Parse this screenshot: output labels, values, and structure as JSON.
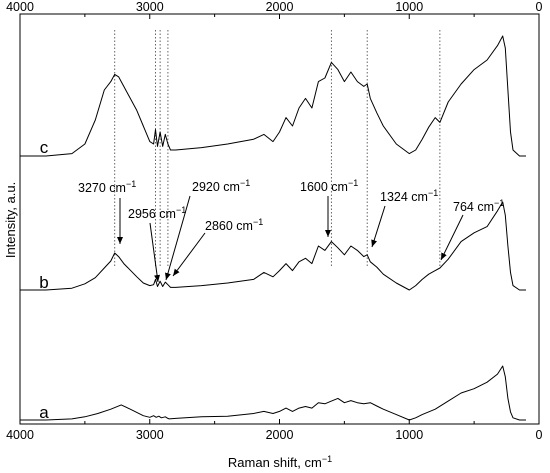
{
  "chart_data": {
    "type": "line",
    "title": "",
    "xlabel": "Raman shift, cm",
    "xlabel_superscript": "−1",
    "ylabel": "Intensity, a.u.",
    "xlim": [
      4000,
      0
    ],
    "x_reversed": true,
    "x_ticks": [
      4000,
      3000,
      2000,
      1000,
      0
    ],
    "x_tick_labels": [
      "4000",
      "3000",
      "2000",
      "1000",
      "0"
    ],
    "y_ticks_shown": false,
    "grid": false,
    "legend": "none",
    "series": [
      {
        "name": "a",
        "x": [
          4000,
          3800,
          3600,
          3500,
          3400,
          3300,
          3220,
          3150,
          3050,
          3000,
          2970,
          2950,
          2930,
          2910,
          2880,
          2860,
          2850,
          2800,
          2600,
          2400,
          2200,
          2120,
          2050,
          2000,
          1950,
          1900,
          1850,
          1800,
          1750,
          1700,
          1650,
          1600,
          1550,
          1500,
          1450,
          1400,
          1350,
          1300,
          1250,
          1200,
          1100,
          1000,
          950,
          900,
          800,
          700,
          600,
          500,
          400,
          320,
          280,
          260,
          240,
          220,
          200,
          150,
          100
        ],
        "y": [
          0.0,
          0.0,
          0.02,
          0.06,
          0.12,
          0.2,
          0.28,
          0.2,
          0.08,
          0.05,
          0.08,
          0.05,
          0.07,
          0.04,
          0.06,
          0.03,
          0.02,
          0.03,
          0.06,
          0.07,
          0.12,
          0.16,
          0.12,
          0.16,
          0.22,
          0.16,
          0.22,
          0.25,
          0.22,
          0.32,
          0.3,
          0.35,
          0.4,
          0.32,
          0.36,
          0.32,
          0.3,
          0.32,
          0.26,
          0.2,
          0.1,
          0.0,
          0.04,
          0.1,
          0.2,
          0.35,
          0.5,
          0.58,
          0.7,
          0.85,
          1.0,
          0.8,
          0.4,
          0.15,
          0.04,
          0.0,
          0.0
        ]
      },
      {
        "name": "b",
        "x": [
          4000,
          3800,
          3600,
          3500,
          3420,
          3350,
          3300,
          3270,
          3240,
          3200,
          3100,
          3050,
          3000,
          2970,
          2956,
          2940,
          2920,
          2900,
          2880,
          2860,
          2840,
          2800,
          2600,
          2400,
          2200,
          2120,
          2050,
          2000,
          1950,
          1900,
          1850,
          1800,
          1750,
          1700,
          1650,
          1600,
          1550,
          1500,
          1450,
          1400,
          1350,
          1324,
          1300,
          1250,
          1200,
          1100,
          1000,
          950,
          900,
          850,
          800,
          764,
          700,
          600,
          500,
          400,
          320,
          280,
          260,
          240,
          220,
          200,
          150,
          100
        ],
        "y": [
          0.0,
          0.0,
          0.02,
          0.07,
          0.14,
          0.25,
          0.33,
          0.42,
          0.38,
          0.3,
          0.15,
          0.08,
          0.05,
          0.06,
          0.12,
          0.04,
          0.1,
          0.04,
          0.09,
          0.06,
          0.03,
          0.03,
          0.05,
          0.08,
          0.12,
          0.2,
          0.15,
          0.22,
          0.3,
          0.22,
          0.32,
          0.36,
          0.3,
          0.5,
          0.45,
          0.55,
          0.48,
          0.4,
          0.5,
          0.45,
          0.38,
          0.4,
          0.32,
          0.26,
          0.18,
          0.08,
          0.0,
          0.05,
          0.12,
          0.18,
          0.22,
          0.25,
          0.35,
          0.55,
          0.65,
          0.72,
          0.9,
          1.0,
          0.85,
          0.5,
          0.2,
          0.05,
          0.0,
          0.0
        ]
      },
      {
        "name": "c",
        "x": [
          4000,
          3800,
          3600,
          3500,
          3420,
          3350,
          3300,
          3270,
          3240,
          3200,
          3100,
          3050,
          3000,
          2970,
          2956,
          2940,
          2920,
          2900,
          2880,
          2860,
          2840,
          2800,
          2600,
          2400,
          2200,
          2120,
          2050,
          2000,
          1950,
          1900,
          1850,
          1800,
          1750,
          1700,
          1650,
          1600,
          1550,
          1500,
          1450,
          1400,
          1350,
          1324,
          1300,
          1250,
          1200,
          1100,
          1000,
          950,
          900,
          850,
          800,
          764,
          700,
          600,
          500,
          400,
          320,
          280,
          260,
          240,
          220,
          200,
          150,
          100
        ],
        "y": [
          0.0,
          0.0,
          0.02,
          0.1,
          0.3,
          0.55,
          0.62,
          0.68,
          0.66,
          0.58,
          0.38,
          0.25,
          0.12,
          0.1,
          0.22,
          0.08,
          0.2,
          0.08,
          0.18,
          0.1,
          0.05,
          0.05,
          0.07,
          0.1,
          0.14,
          0.18,
          0.12,
          0.2,
          0.32,
          0.25,
          0.4,
          0.48,
          0.4,
          0.62,
          0.65,
          0.78,
          0.72,
          0.62,
          0.7,
          0.62,
          0.58,
          0.6,
          0.48,
          0.36,
          0.25,
          0.1,
          0.02,
          0.05,
          0.14,
          0.24,
          0.32,
          0.28,
          0.45,
          0.6,
          0.72,
          0.8,
          0.92,
          1.0,
          0.9,
          0.55,
          0.2,
          0.05,
          0.0,
          0.0
        ]
      }
    ],
    "annotations": [
      {
        "label": "3270 cm",
        "sup": "−1",
        "x": 3270
      },
      {
        "label": "2956 cm",
        "sup": "−1",
        "x": 2956
      },
      {
        "label": "2920 cm",
        "sup": "−1",
        "x": 2920
      },
      {
        "label": "2860 cm",
        "sup": "−1",
        "x": 2860
      },
      {
        "label": "1600 cm",
        "sup": "−1",
        "x": 1600
      },
      {
        "label": "1324 cm",
        "sup": "−1",
        "x": 1324
      },
      {
        "label": "764 cm",
        "sup": "−1",
        "x": 764
      }
    ],
    "reference_lines_x": [
      3270,
      2956,
      2920,
      2860,
      1600,
      1324,
      764
    ]
  }
}
